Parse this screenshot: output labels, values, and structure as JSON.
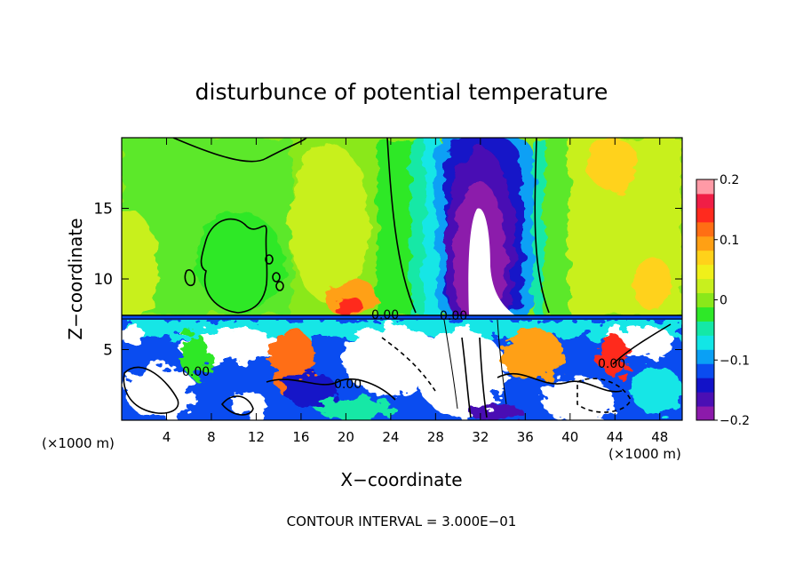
{
  "chart_data": {
    "type": "heatmap",
    "title": "disturbunce of potential temperature",
    "xlabel": "X−coordinate",
    "ylabel": "Z−coordinate",
    "x_unit_label": "(×1000 m)",
    "z_unit_label": "(×1000 m)",
    "footer": "CONTOUR INTERVAL = 3.000E−01",
    "xlim": [
      0,
      50
    ],
    "ylim": [
      0,
      20
    ],
    "x_ticks": [
      4,
      8,
      12,
      16,
      20,
      24,
      28,
      32,
      36,
      40,
      44,
      48
    ],
    "y_ticks": [
      5,
      10,
      15
    ],
    "x_tick_labels": [
      "4",
      "8",
      "12",
      "16",
      "20",
      "24",
      "28",
      "32",
      "36",
      "40",
      "44",
      "48"
    ],
    "y_tick_labels": [
      "5",
      "10",
      "15"
    ],
    "colorbar": {
      "range": [
        -0.2,
        0.2
      ],
      "ticks": [
        0.2,
        0.1,
        0,
        -0.1,
        -0.2
      ],
      "tick_labels": [
        "0.2",
        "0.1",
        "0",
        "−0.1",
        "−0.2"
      ],
      "colors": [
        "#8c1aab",
        "#4a0fb4",
        "#1212c8",
        "#0a4cf0",
        "#0aa0f5",
        "#12e6e6",
        "#14e8a6",
        "#2ee828",
        "#8ae81a",
        "#c8f01e",
        "#f0f01a",
        "#ffd21a",
        "#ffa014",
        "#ff6e14",
        "#ff2a1e",
        "#f01e46",
        "#ff9aa6"
      ]
    },
    "contour_labels": [
      "0.00",
      "0.00",
      "0.00",
      "0.00",
      "0.00"
    ],
    "upper_regions": [
      {
        "x": [
          0,
          14
        ],
        "z": [
          7.2,
          20
        ],
        "value": 0.02
      },
      {
        "x": [
          4,
          11
        ],
        "z": [
          10,
          14
        ],
        "value": 0.0
      },
      {
        "x": [
          14,
          22
        ],
        "z": [
          7.2,
          20
        ],
        "value": 0.05
      },
      {
        "x": [
          18,
          23
        ],
        "z": [
          7.2,
          10
        ],
        "value": 0.12
      },
      {
        "x": [
          22,
          26
        ],
        "z": [
          7.2,
          20
        ],
        "value": 0.01
      },
      {
        "x": [
          25,
          29
        ],
        "z": [
          7.2,
          20
        ],
        "value": -0.06
      },
      {
        "x": [
          28,
          35
        ],
        "z": [
          7.2,
          20
        ],
        "value": -0.15
      },
      {
        "x": [
          30,
          33
        ],
        "z": [
          7.2,
          15
        ],
        "value": -0.25
      },
      {
        "x": [
          35,
          38
        ],
        "z": [
          7.2,
          20
        ],
        "value": -0.03
      },
      {
        "x": [
          38,
          50
        ],
        "z": [
          7.2,
          20
        ],
        "value": 0.05
      },
      {
        "x": [
          42,
          48
        ],
        "z": [
          15,
          20
        ],
        "value": 0.09
      }
    ],
    "boundary_layer_top": 7.2
  }
}
